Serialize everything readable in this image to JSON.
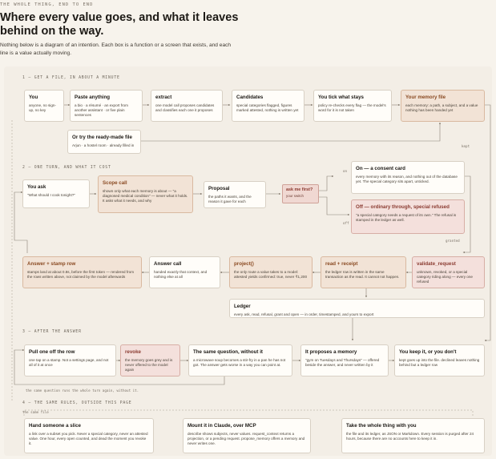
{
  "header": {
    "eyebrow": "THE WHOLE THING, END TO END",
    "title": "Where every value goes, and what it leaves behind on the way.",
    "lede": "Nothing below is a diagram of an intention. Each box is a function or a screen that exists, and each line is a value actually moving."
  },
  "sections": {
    "s1": "1 — GET A FILE, IN ABOUT A MINUTE",
    "s2": "2 — ONE TURN, AND WHAT IT COST",
    "s3": "3 — AFTER THE ANSWER",
    "s4": "4 — THE SAME RULES, OUTSIDE THIS PAGE"
  },
  "s1": {
    "you": {
      "title": "You",
      "body": "anyone, no sign-up, no key"
    },
    "paste": {
      "title": "Paste anything",
      "body": "a bio · a résumé · an export from another assistant · or five plain sentences"
    },
    "extract": {
      "title": "extract",
      "body": "one model call proposes candidates and classifies each one it proposes"
    },
    "candidates": {
      "title": "Candidates",
      "body": "special categories flagged, figures marked attested, nothing is written yet"
    },
    "tick": {
      "title": "You tick what stays",
      "body": "policy re-checks every flag — the model's word for it is not taken"
    },
    "memory": {
      "title": "Your memory file",
      "body": "each memory: a path, a subject, and a value nothing has been handed yet"
    },
    "ready": {
      "title": "Or try the ready-made file",
      "body": "Arjun · a hostel room · already filled in"
    },
    "kept": "kept"
  },
  "s2": {
    "ask": {
      "title": "You ask",
      "body": "\"What should I cook tonight?\""
    },
    "scope": {
      "title": "Scope call",
      "body": "shown only what each memory is about — \"a diagnosed medical condition\" — never what it holds. It asks what it needs, and why"
    },
    "proposal": {
      "title": "Proposal",
      "body": "the paths it wants, and the reason it gave for each"
    },
    "askfirst": {
      "title": "ask me first?",
      "body": "your switch"
    },
    "on_label": "on",
    "off_label": "off",
    "on": {
      "title": "On — a consent card",
      "body": "every memory with its reason, and nothing out of the database yet. The special category sits apart, unticked."
    },
    "off": {
      "title": "Off — ordinary through, special refused",
      "body": "\"a special category needs a request of its own.\" The refusal is stamped in the ledger as well."
    },
    "granted": "granted",
    "validate": {
      "title": "validate_request",
      "body": "unknown, revoked, or a special category riding along — every one refused"
    },
    "read": {
      "title": "read + receipt",
      "body": "the ledger row is written in the same transaction as the read. It cannot not happen."
    },
    "project": {
      "title": "project()",
      "body": "the only route a value takes to a model: attested yields confirmed: true, never ₹1,200"
    },
    "answer_call": {
      "title": "Answer call",
      "body": "handed exactly that context, and nothing else at all"
    },
    "stamp": {
      "title": "Answer + stamp row",
      "body": "stamps land at about 0.8s, before the first token — rendered from the rows written above, not claimed by the model afterwards"
    },
    "ledger": {
      "title": "Ledger",
      "body": "every ask, read, refusal, grant and open — in order, timestamped, and yours to export"
    }
  },
  "s3": {
    "pull": {
      "title": "Pull one off the row",
      "body": "one tap on a stamp. Not a settings page, and not all of it at once"
    },
    "revoke": {
      "title": "revoke",
      "body": "the memory goes grey and is never offered to the model again"
    },
    "same": {
      "title": "The same question, without it",
      "body": "a microwave soup becomes a stir-fry in a pan he has not got. The answer gets worse in a way you can point at."
    },
    "proposes": {
      "title": "It proposes a memory",
      "body": "\"gym on Tuesdays and Thursdays\" — offered beside the answer, and never written by it"
    },
    "keep": {
      "title": "You keep it, or you don't",
      "body": "kept goes up into the file. declined leaves nothing behind but a ledger row"
    },
    "note": "the same question runs the whole turn again, without it."
  },
  "s4": {
    "same_file": "the same file",
    "slice": {
      "title": "Hand someone a slice",
      "body": "a link over a subset you pick. Never a special category, never an attested value. One hour, every open counted, and dead the moment you revoke it."
    },
    "mcp": {
      "title": "Mount it in Claude, over MCP",
      "body": "describe shows subjects, never values. request_context returns a projection, or a pending request. propose_memory offers a memory and never writes one."
    },
    "take": {
      "title": "Take the whole thing with you",
      "body": "the file and its ledger, as JSON or Markdown. Every session is purged after 24 hours, because there are no accounts here to keep it in."
    }
  }
}
